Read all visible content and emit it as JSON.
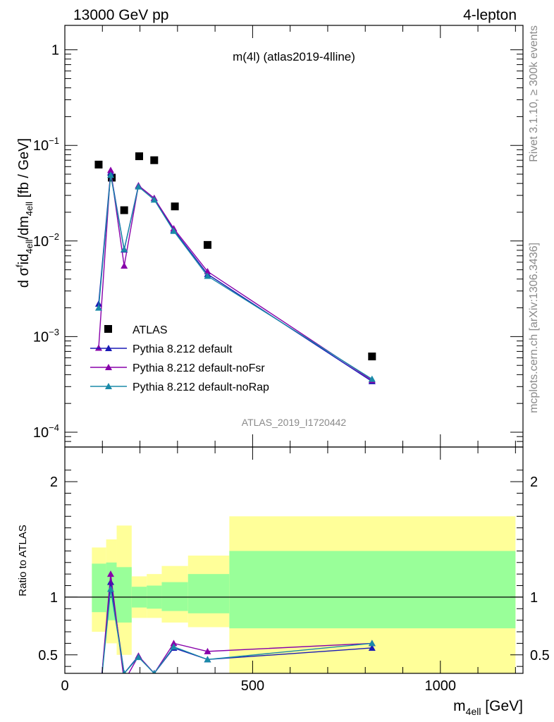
{
  "header": {
    "left": "13000 GeV pp",
    "right": "4-lepton"
  },
  "side_text": {
    "rivet": "Rivet 3.1.10, ≥ 300k events",
    "mcplots": "mcplots.cern.ch [arXiv:1306.3436]"
  },
  "chart_data": [
    {
      "type": "scatter",
      "title": "m(4l) (atlas2019-4lline)",
      "watermark": "ATLAS_2019_I1720442",
      "ylabel": {
        "base": "d σ",
        "sup1": "f",
        "mid1": "id",
        "sub1": "4ell",
        "mid2": "/dm",
        "sub2": "4ell",
        "tail": " [fb / GeV]"
      },
      "yscale": "log",
      "ylim": [
        7e-05,
        1.8
      ],
      "xlim": [
        0,
        1220
      ],
      "y_ticks": [
        {
          "value": 1,
          "label": "1",
          "exp": ""
        },
        {
          "value": 0.1,
          "label": "10",
          "exp": "−1"
        },
        {
          "value": 0.01,
          "label": "10",
          "exp": "−2"
        },
        {
          "value": 0.001,
          "label": "10",
          "exp": "−3"
        },
        {
          "value": 0.0001,
          "label": "10",
          "exp": "−4"
        }
      ],
      "legend_position": "bottom-left",
      "series": [
        {
          "name": "ATLAS",
          "marker": "square",
          "color": "#000000",
          "x": [
            90,
            125,
            158,
            198,
            238,
            293,
            380,
            818
          ],
          "y": [
            0.063,
            0.046,
            0.021,
            0.077,
            0.07,
            0.023,
            0.0091,
            0.00062
          ]
        },
        {
          "name": "Pythia 8.212 default",
          "marker": "triangle",
          "color": "#1a1ab5",
          "x": [
            90,
            122,
            158,
            196,
            238,
            290,
            380,
            818
          ],
          "y": [
            0.0022,
            0.052,
            0.0081,
            0.038,
            0.028,
            0.013,
            0.0045,
            0.00034
          ]
        },
        {
          "name": "Pythia 8.212 default-noFsr",
          "marker": "triangle",
          "color": "#8800aa",
          "x": [
            90,
            122,
            158,
            196,
            238,
            290,
            380,
            818
          ],
          "y": [
            0.00076,
            0.055,
            0.0055,
            0.038,
            0.028,
            0.0135,
            0.0048,
            0.00035
          ]
        },
        {
          "name": "Pythia 8.212 default-noRap",
          "marker": "triangle",
          "color": "#1a8aa8",
          "x": [
            90,
            122,
            158,
            196,
            238,
            290,
            380,
            818
          ],
          "y": [
            0.002,
            0.049,
            0.0082,
            0.037,
            0.027,
            0.0127,
            0.0043,
            0.00036
          ]
        }
      ]
    },
    {
      "type": "line",
      "ylabel": "Ratio to ATLAS",
      "xlabel": {
        "base": "m",
        "sub": "4ell",
        "tail": " [GeV]"
      },
      "xlim": [
        0,
        1220
      ],
      "ylim": [
        0.34,
        2.3
      ],
      "y_ticks": [
        "0.5",
        "1",
        "2"
      ],
      "x_ticks": [
        "0",
        "500",
        "1000"
      ],
      "reference_line": 1,
      "bands": {
        "colors": {
          "outer": "#ffff99",
          "inner": "#99ff99"
        },
        "bins": [
          {
            "x0": 72,
            "x1": 110,
            "outer": [
              0.7,
              1.43
            ],
            "inner": [
              0.87,
              1.29
            ]
          },
          {
            "x0": 110,
            "x1": 138,
            "outer": [
              0.6,
              1.5
            ],
            "inner": [
              0.8,
              1.3
            ]
          },
          {
            "x0": 138,
            "x1": 178,
            "outer": [
              0.5,
              1.62
            ],
            "inner": [
              0.78,
              1.26
            ]
          },
          {
            "x0": 178,
            "x1": 218,
            "outer": [
              0.82,
              1.18
            ],
            "inner": [
              0.91,
              1.09
            ]
          },
          {
            "x0": 218,
            "x1": 258,
            "outer": [
              0.82,
              1.2
            ],
            "inner": [
              0.9,
              1.1
            ]
          },
          {
            "x0": 258,
            "x1": 328,
            "outer": [
              0.78,
              1.27
            ],
            "inner": [
              0.88,
              1.13
            ]
          },
          {
            "x0": 328,
            "x1": 438,
            "outer": [
              0.74,
              1.36
            ],
            "inner": [
              0.86,
              1.2
            ]
          },
          {
            "x0": 438,
            "x1": 1200,
            "outer": [
              0.34,
              1.7
            ],
            "inner": [
              0.73,
              1.4
            ]
          }
        ]
      },
      "series": [
        {
          "name": "Pythia 8.212 default",
          "color": "#1a1ab5",
          "x": [
            90,
            122,
            158,
            196,
            238,
            290,
            380,
            818
          ],
          "y": [
            0.03,
            1.13,
            0.34,
            0.49,
            0.34,
            0.56,
            0.46,
            0.56
          ]
        },
        {
          "name": "Pythia 8.212 default-noFsr",
          "color": "#8800aa",
          "x": [
            90,
            122,
            158,
            196,
            238,
            290,
            380,
            818
          ],
          "y": [
            0.01,
            1.2,
            0.27,
            0.49,
            0.34,
            0.6,
            0.53,
            0.6
          ]
        },
        {
          "name": "Pythia 8.212 default-noRap",
          "color": "#1a8aa8",
          "x": [
            90,
            122,
            158,
            196,
            238,
            290,
            380,
            818
          ],
          "y": [
            0.03,
            1.07,
            0.34,
            0.48,
            0.34,
            0.57,
            0.46,
            0.6
          ]
        }
      ]
    }
  ]
}
